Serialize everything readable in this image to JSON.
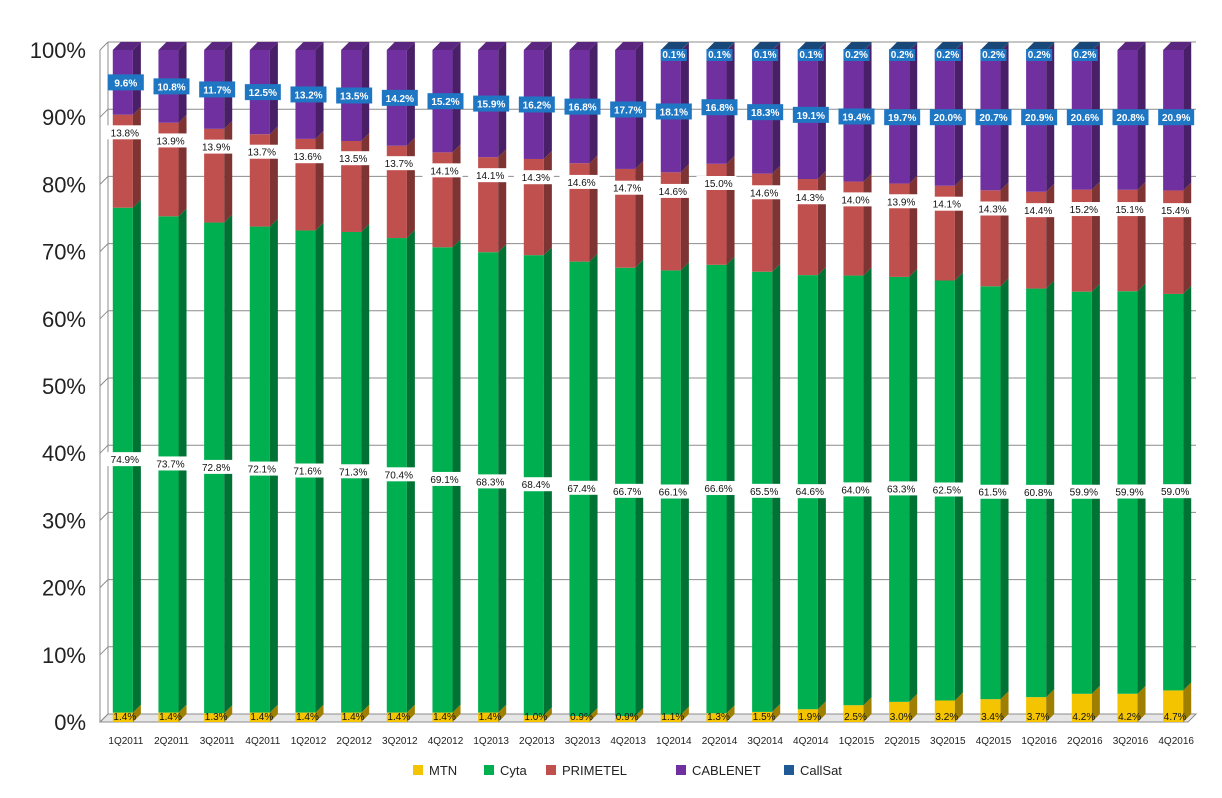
{
  "chart_data": {
    "type": "bar",
    "stacked": true,
    "percent_stacked": true,
    "categories": [
      "1Q2011",
      "2Q2011",
      "3Q2011",
      "4Q2011",
      "1Q2012",
      "2Q2012",
      "3Q2012",
      "4Q2012",
      "1Q2013",
      "2Q2013",
      "3Q2013",
      "4Q2013",
      "1Q2014",
      "2Q2014",
      "3Q2014",
      "4Q2014",
      "1Q2015",
      "2Q2015",
      "3Q2015",
      "4Q2015",
      "1Q2016",
      "2Q2016",
      "3Q2016",
      "4Q2016"
    ],
    "series": [
      {
        "name": "MTN",
        "color": "#f5c400",
        "values": [
          1.4,
          1.4,
          1.3,
          1.4,
          1.4,
          1.4,
          1.4,
          1.4,
          1.4,
          1.0,
          0.9,
          0.9,
          1.1,
          1.3,
          1.5,
          1.9,
          2.5,
          3.0,
          3.2,
          3.4,
          3.7,
          4.2,
          4.2,
          4.7
        ],
        "labels": [
          "1.4%",
          "1.4%",
          "1.3%",
          "1.4%",
          "1.4%",
          "1.4%",
          "1.4%",
          "1.4%",
          "1.4%",
          "1.0%",
          "0.9%",
          "0.9%",
          "1.1%",
          "1.3%",
          "1.5%",
          "1.9%",
          "2.5%",
          "3.0%",
          "3.2%",
          "3.4%",
          "3.7%",
          "4.2%",
          "4.2%",
          "4.7%"
        ]
      },
      {
        "name": "Cyta",
        "color": "#00b050",
        "values": [
          74.9,
          73.7,
          72.8,
          72.1,
          71.6,
          71.3,
          70.4,
          69.1,
          68.3,
          68.4,
          67.4,
          66.7,
          66.1,
          66.6,
          65.5,
          64.6,
          64.0,
          63.3,
          62.5,
          61.5,
          60.8,
          59.9,
          59.9,
          59.0
        ],
        "labels": [
          "74.9%",
          "73.7%",
          "72.8%",
          "72.1%",
          "71.6%",
          "71.3%",
          "70.4%",
          "69.1%",
          "68.3%",
          "68.4%",
          "67.4%",
          "66.7%",
          "66.1%",
          "66.6%",
          "65.5%",
          "64.6%",
          "64.0%",
          "63.3%",
          "62.5%",
          "61.5%",
          "60.8%",
          "59.9%",
          "59.9%",
          "59.0%"
        ]
      },
      {
        "name": "PRIMETEL",
        "color": "#c0504d",
        "values": [
          13.8,
          13.9,
          13.9,
          13.7,
          13.6,
          13.5,
          13.7,
          14.1,
          14.1,
          14.3,
          14.6,
          14.7,
          14.6,
          15.0,
          14.6,
          14.3,
          14.0,
          13.9,
          14.1,
          14.3,
          14.4,
          15.2,
          15.1,
          15.4
        ],
        "labels": [
          "13.8%",
          "13.9%",
          "13.9%",
          "13.7%",
          "13.6%",
          "13.5%",
          "13.7%",
          "14.1%",
          "14.1%",
          "14.3%",
          "14.6%",
          "14.7%",
          "14.6%",
          "15.0%",
          "14.6%",
          "14.3%",
          "14.0%",
          "13.9%",
          "14.1%",
          "14.3%",
          "14.4%",
          "15.2%",
          "15.1%",
          "15.4%"
        ]
      },
      {
        "name": "CABLENET",
        "color": "#7030a0",
        "values": [
          9.6,
          10.8,
          11.7,
          12.5,
          13.2,
          13.5,
          14.2,
          15.2,
          15.9,
          16.2,
          16.8,
          17.7,
          18.1,
          16.8,
          18.3,
          19.1,
          19.4,
          19.7,
          20.0,
          20.7,
          20.9,
          20.6,
          20.8,
          20.9
        ],
        "labels": [
          "9.6%",
          "10.8%",
          "11.7%",
          "12.5%",
          "13.2%",
          "13.5%",
          "14.2%",
          "15.2%",
          "15.9%",
          "16.2%",
          "16.8%",
          "17.7%",
          "18.1%",
          "16.8%",
          "18.3%",
          "19.1%",
          "19.4%",
          "19.7%",
          "20.0%",
          "20.7%",
          "20.9%",
          "20.6%",
          "20.8%",
          "20.9%"
        ]
      },
      {
        "name": "CallSat",
        "color": "#1f5a96",
        "values": [
          0,
          0,
          0,
          0,
          0,
          0,
          0,
          0,
          0,
          0,
          0,
          0,
          0.1,
          0.1,
          0.1,
          0.1,
          0.2,
          0.2,
          0.2,
          0.2,
          0.2,
          0.2,
          0,
          0
        ],
        "labels": [
          "",
          "",
          "",
          "",
          "",
          "",
          "",
          "",
          "",
          "",
          "",
          "",
          "0.1%",
          "0.1%",
          "0.1%",
          "0.1%",
          "0.2%",
          "0.2%",
          "0.2%",
          "0.2%",
          "0.2%",
          "0.2%",
          "",
          ""
        ]
      }
    ],
    "y_ticks": [
      "0%",
      "10%",
      "20%",
      "30%",
      "40%",
      "50%",
      "60%",
      "70%",
      "80%",
      "90%",
      "100%"
    ],
    "ylim": [
      0,
      100
    ],
    "grid": true,
    "legend_position": "bottom",
    "title": "",
    "xlabel": "",
    "ylabel": ""
  }
}
